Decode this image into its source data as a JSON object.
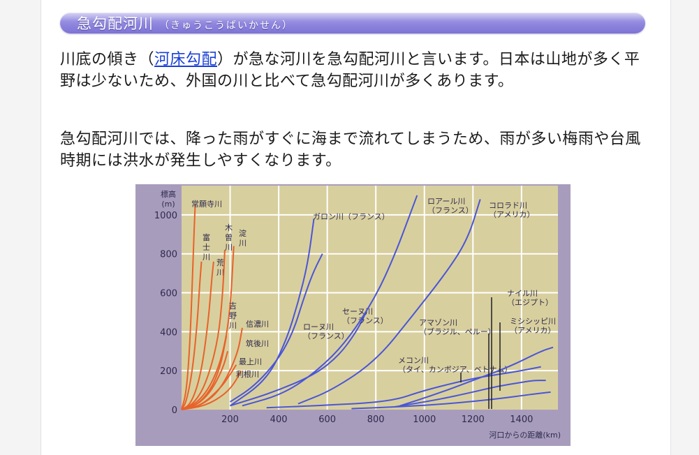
{
  "section": {
    "title": "急勾配河川",
    "reading": "（きゅうこうばいかせん）"
  },
  "paragraph1": {
    "before": "川底の傾き（",
    "link": "河床勾配",
    "after": "）が急な河川を急勾配河川と言います。日本は山地が多く平野は少ないため、外国の川と比べて急勾配河川が多くあります。"
  },
  "paragraph2": {
    "text": "急勾配河川では、降った雨がすぐに海まで流れてしまうため、雨が多い梅雨や台風時期には洪水が発生しやすくなります。"
  },
  "colors": {
    "plot_bg": "#d8cf9e",
    "frame_bg": "#a89cbd",
    "japan_rivers": "#e8622a",
    "foreign_rivers": "#4a55d8",
    "grid": "#ffffff",
    "link": "#1a3fd6"
  },
  "chart_data": {
    "type": "line",
    "ylabel": "標高\n(m)",
    "xlabel": "河口からの距離(km)",
    "xlim": [
      0,
      1550
    ],
    "ylim": [
      0,
      1150
    ],
    "x_ticks": [
      200,
      400,
      600,
      800,
      1000,
      1200,
      1400
    ],
    "y_ticks": [
      0,
      200,
      400,
      600,
      800,
      1000
    ],
    "grid": true,
    "series": [
      {
        "name": "常願寺川",
        "group": "japan",
        "label_lines": [
          "常願寺川"
        ],
        "points": [
          [
            0,
            0
          ],
          [
            18,
            80
          ],
          [
            30,
            250
          ],
          [
            40,
            500
          ],
          [
            48,
            800
          ],
          [
            56,
            1050
          ]
        ]
      },
      {
        "name": "富士川",
        "group": "japan",
        "label_lines": [
          "富",
          "士",
          "川"
        ],
        "points": [
          [
            0,
            0
          ],
          [
            20,
            40
          ],
          [
            45,
            200
          ],
          [
            65,
            450
          ],
          [
            75,
            650
          ],
          [
            82,
            760
          ]
        ]
      },
      {
        "name": "荒川",
        "group": "japan",
        "label_lines": [
          "荒",
          "川"
        ],
        "points": [
          [
            0,
            0
          ],
          [
            40,
            30
          ],
          [
            80,
            180
          ],
          [
            110,
            450
          ],
          [
            125,
            680
          ],
          [
            132,
            760
          ]
        ]
      },
      {
        "name": "木曽川",
        "group": "japan",
        "label_lines": [
          "木",
          "曽",
          "川"
        ],
        "points": [
          [
            0,
            0
          ],
          [
            50,
            30
          ],
          [
            100,
            130
          ],
          [
            150,
            350
          ],
          [
            170,
            600
          ],
          [
            178,
            820
          ]
        ]
      },
      {
        "name": "淀川",
        "group": "japan",
        "label_lines": [
          "淀",
          "川"
        ],
        "points": [
          [
            0,
            0
          ],
          [
            60,
            30
          ],
          [
            120,
            120
          ],
          [
            170,
            280
          ],
          [
            200,
            500
          ],
          [
            215,
            840
          ]
        ]
      },
      {
        "name": "吉野川",
        "group": "japan",
        "label_lines": [
          "吉",
          "野",
          "川"
        ],
        "points": [
          [
            0,
            0
          ],
          [
            60,
            20
          ],
          [
            120,
            100
          ],
          [
            160,
            220
          ],
          [
            185,
            380
          ]
        ]
      },
      {
        "name": "信濃川",
        "group": "japan",
        "label_lines": [
          "信濃川"
        ],
        "points": [
          [
            0,
            0
          ],
          [
            80,
            20
          ],
          [
            160,
            100
          ],
          [
            230,
            280
          ],
          [
            250,
            420
          ]
        ]
      },
      {
        "name": "筑後川",
        "group": "japan",
        "label_lines": [
          "筑後川"
        ],
        "points": [
          [
            0,
            0
          ],
          [
            60,
            20
          ],
          [
            120,
            90
          ],
          [
            170,
            210
          ],
          [
            190,
            300
          ]
        ]
      },
      {
        "name": "最上川",
        "group": "japan",
        "label_lines": [
          "最上川"
        ],
        "points": [
          [
            0,
            0
          ],
          [
            80,
            20
          ],
          [
            160,
            110
          ],
          [
            200,
            180
          ],
          [
            225,
            230
          ]
        ]
      },
      {
        "name": "利根川",
        "group": "japan",
        "label_lines": [
          "利根川"
        ],
        "points": [
          [
            0,
            0
          ],
          [
            100,
            20
          ],
          [
            180,
            80
          ],
          [
            220,
            140
          ],
          [
            245,
            200
          ]
        ]
      },
      {
        "name": "ガロン川（フランス）",
        "group": "foreign",
        "label_lines": [
          "ガロン川（フランス）"
        ],
        "points": [
          [
            200,
            20
          ],
          [
            350,
            150
          ],
          [
            430,
            350
          ],
          [
            480,
            550
          ],
          [
            520,
            750
          ],
          [
            545,
            980
          ]
        ]
      },
      {
        "name": "ローヌ川（フランス）",
        "group": "foreign",
        "label_lines": [
          "ローヌ川",
          "（フランス）"
        ],
        "points": [
          [
            200,
            40
          ],
          [
            300,
            120
          ],
          [
            400,
            260
          ],
          [
            460,
            400
          ],
          [
            500,
            560
          ],
          [
            540,
            700
          ],
          [
            580,
            800
          ]
        ]
      },
      {
        "name": "セーヌ川（フランス）",
        "group": "foreign",
        "label_lines": [
          "セーヌ川",
          "（フランス）"
        ],
        "points": [
          [
            200,
            20
          ],
          [
            380,
            90
          ],
          [
            550,
            180
          ],
          [
            650,
            280
          ],
          [
            720,
            400
          ],
          [
            760,
            500
          ]
        ]
      },
      {
        "name": "ロアール川（フランス）",
        "group": "foreign",
        "label_lines": [
          "ロアール川",
          "（フランス）"
        ],
        "points": [
          [
            250,
            20
          ],
          [
            420,
            80
          ],
          [
            560,
            200
          ],
          [
            680,
            350
          ],
          [
            800,
            580
          ],
          [
            880,
            800
          ],
          [
            940,
            1000
          ],
          [
            970,
            1100
          ]
        ]
      },
      {
        "name": "コロラド川（アメリカ）",
        "group": "foreign",
        "label_lines": [
          "コロラド川",
          "（アメリカ）"
        ],
        "points": [
          [
            480,
            30
          ],
          [
            620,
            100
          ],
          [
            800,
            250
          ],
          [
            950,
            480
          ],
          [
            1100,
            720
          ],
          [
            1180,
            880
          ],
          [
            1230,
            1080
          ]
        ]
      },
      {
        "name": "メコン川（タイ、カンボジア、ベトナム）",
        "group": "foreign",
        "label_lines": [
          "メコン川",
          "（タイ、カンボジア、ベトナム）"
        ],
        "points": [
          [
            350,
            10
          ],
          [
            550,
            20
          ],
          [
            860,
            40
          ],
          [
            1000,
            100
          ],
          [
            1200,
            160
          ],
          [
            1300,
            180
          ],
          [
            1400,
            200
          ],
          [
            1480,
            220
          ]
        ]
      },
      {
        "name": "ナイル川（エジプト）",
        "group": "foreign",
        "label_lines": [
          "ナイル川",
          "（エジプト）"
        ],
        "points": [
          [
            900,
            20
          ],
          [
            1050,
            80
          ],
          [
            1200,
            150
          ],
          [
            1350,
            220
          ],
          [
            1480,
            300
          ],
          [
            1530,
            320
          ]
        ]
      },
      {
        "name": "ミシシッピ川（アメリカ）",
        "group": "foreign",
        "label_lines": [
          "ミシシッピ川",
          "（アメリカ）"
        ],
        "points": [
          [
            880,
            15
          ],
          [
            1050,
            50
          ],
          [
            1200,
            90
          ],
          [
            1300,
            120
          ],
          [
            1400,
            140
          ],
          [
            1450,
            150
          ],
          [
            1500,
            150
          ]
        ]
      },
      {
        "name": "アマゾン川（ブラジル、ペルー）",
        "group": "foreign",
        "label_lines": [
          "アマゾン川",
          "（ブラジル、ペルー）"
        ],
        "points": [
          [
            700,
            5
          ],
          [
            900,
            15
          ],
          [
            1100,
            30
          ],
          [
            1300,
            55
          ],
          [
            1450,
            80
          ],
          [
            1520,
            90
          ]
        ]
      }
    ]
  }
}
